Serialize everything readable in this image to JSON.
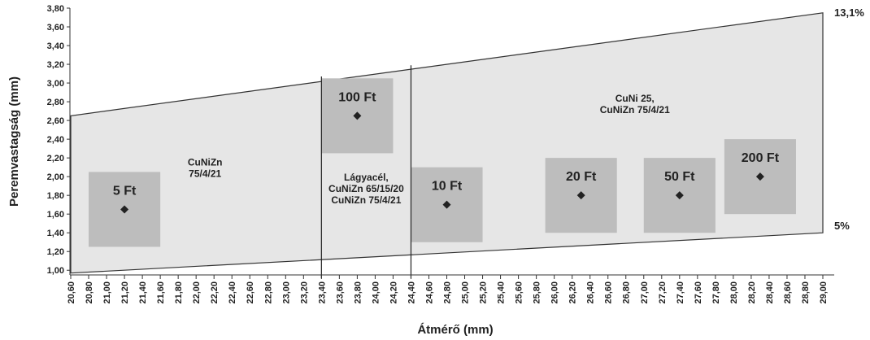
{
  "chart_data": {
    "type": "scatter",
    "xlabel": "Átmérő (mm)",
    "ylabel": "Peremvastagság (mm)",
    "xlim": [
      20.5,
      29.0
    ],
    "ylim": [
      0.95,
      3.8
    ],
    "x_ticks": [
      "20,60",
      "20,80",
      "21,00",
      "21,20",
      "21,40",
      "21,60",
      "21,80",
      "22,00",
      "22,20",
      "22,40",
      "22,60",
      "22,80",
      "23,00",
      "23,20",
      "23,40",
      "23,60",
      "23,80",
      "24,00",
      "24,20",
      "24,40",
      "24,60",
      "24,80",
      "25,00",
      "25,20",
      "25,40",
      "25,60",
      "25,80",
      "26,00",
      "26,20",
      "26,40",
      "26,60",
      "26,80",
      "27,00",
      "27,20",
      "27,40",
      "27,60",
      "27,80",
      "28,00",
      "28,20",
      "28,40",
      "28,60",
      "28,80",
      "29,00"
    ],
    "y_ticks": [
      "1,00",
      "1,20",
      "1,40",
      "1,60",
      "1,80",
      "2,00",
      "2,20",
      "2,40",
      "2,60",
      "2,80",
      "3,00",
      "3,20",
      "3,40",
      "3,60",
      "3,80"
    ],
    "band": {
      "lower": [
        [
          20.6,
          0.97
        ],
        [
          29.0,
          1.4
        ]
      ],
      "upper": [
        [
          20.6,
          2.65
        ],
        [
          29.0,
          3.75
        ]
      ],
      "upper_label": "13,1%",
      "lower_label": "5%"
    },
    "dividers": [
      {
        "x": 23.4,
        "y_top": 3.07
      },
      {
        "x": 24.4,
        "y_top": 3.19
      }
    ],
    "regions": [
      {
        "lines": [
          "CuNiZn",
          "75/4/21"
        ],
        "x": 22.1,
        "y": 2.12
      },
      {
        "lines": [
          "Lágyacél,",
          "CuNiZn 65/15/20",
          "CuNiZn 75/4/21"
        ],
        "x": 23.9,
        "y": 1.96
      },
      {
        "lines": [
          "CuNi 25,",
          "CuNiZn 75/4/21"
        ],
        "x": 26.9,
        "y": 2.8
      }
    ],
    "coins": [
      {
        "label": "5 Ft",
        "x": 21.2,
        "y": 1.65,
        "box": [
          [
            20.8,
            1.25
          ],
          [
            21.6,
            2.05
          ]
        ]
      },
      {
        "label": "100 Ft",
        "x": 23.8,
        "y": 2.65,
        "box": [
          [
            23.4,
            2.25
          ],
          [
            24.2,
            3.05
          ]
        ]
      },
      {
        "label": "10 Ft",
        "x": 24.8,
        "y": 1.7,
        "box": [
          [
            24.4,
            1.3
          ],
          [
            25.2,
            2.1
          ]
        ]
      },
      {
        "label": "20 Ft",
        "x": 26.3,
        "y": 1.8,
        "box": [
          [
            25.9,
            1.4
          ],
          [
            26.7,
            2.2
          ]
        ]
      },
      {
        "label": "50 Ft",
        "x": 27.4,
        "y": 1.8,
        "box": [
          [
            27.0,
            1.4
          ],
          [
            27.8,
            2.2
          ]
        ]
      },
      {
        "label": "200 Ft",
        "x": 28.3,
        "y": 2.0,
        "box": [
          [
            27.9,
            1.6
          ],
          [
            28.7,
            2.4
          ]
        ]
      }
    ],
    "colors": {
      "band_fill": "#e6e6e6",
      "band_stroke": "#333333",
      "coin_box": "#bdbdbd",
      "marker": "#222222"
    }
  }
}
